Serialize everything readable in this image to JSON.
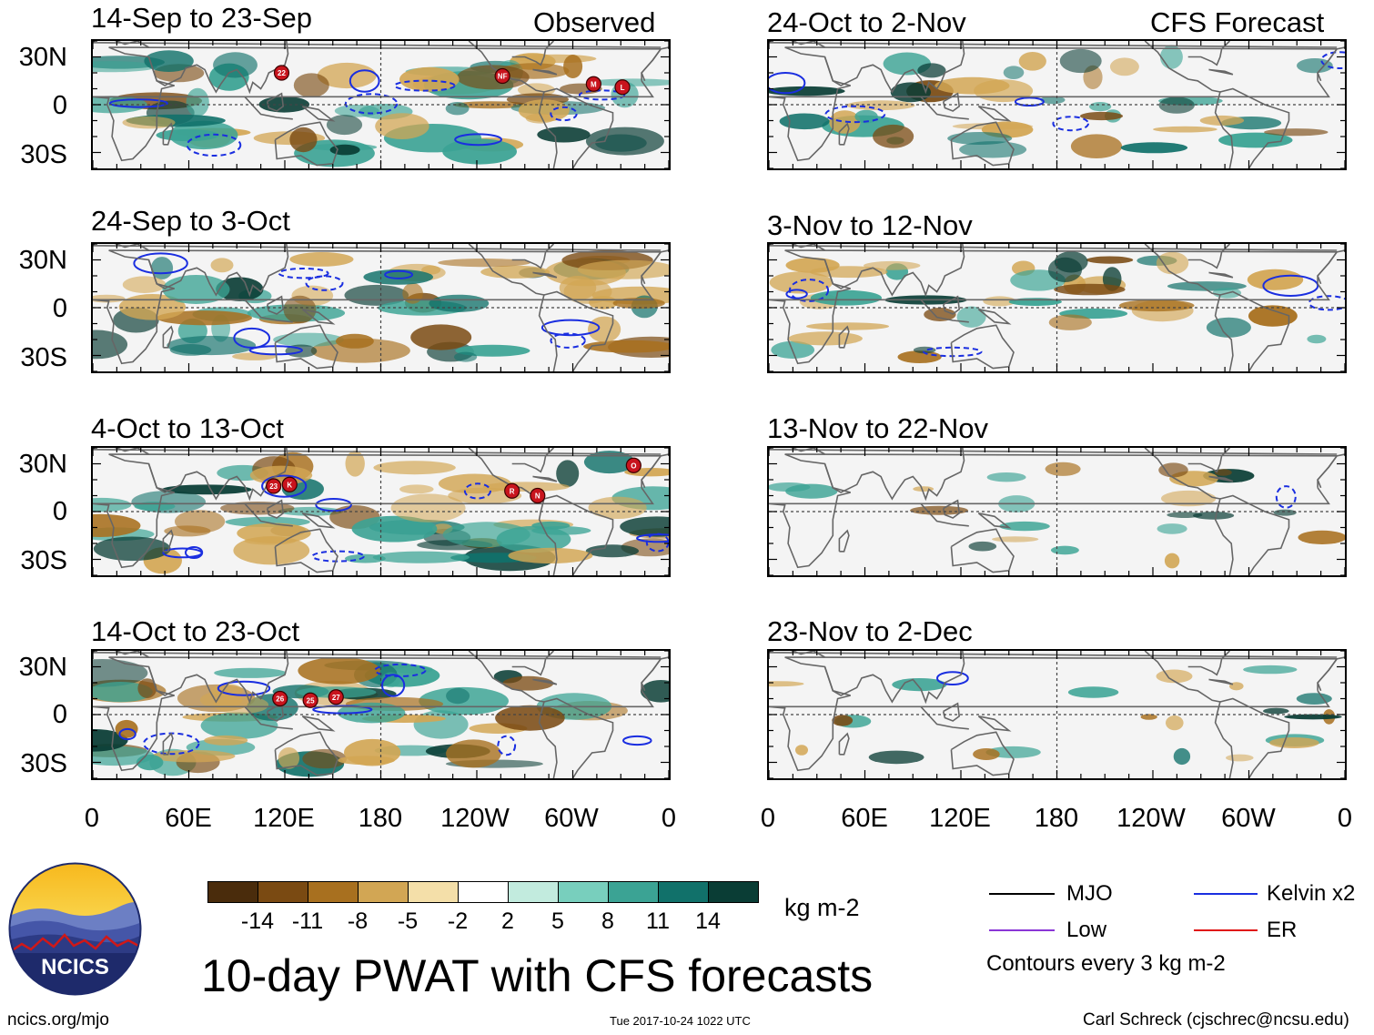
{
  "figure": {
    "title": "10-day PWAT with CFS forecasts",
    "observed_label": "Observed",
    "forecast_label": "CFS Forecast",
    "units": "kg m-2",
    "contour_note": "Contours every 3 kg m-2",
    "site_url": "ncics.org/mjo",
    "timestamp": "Tue 2017-10-24 1022 UTC",
    "author": "Carl Schreck (cjschrec@ncsu.edu)",
    "logo_text": "NCICS"
  },
  "axes": {
    "lat_ticks": [
      "30N",
      "0",
      "30S"
    ],
    "lon_ticks": [
      "0",
      "60E",
      "120E",
      "180",
      "120W",
      "60W",
      "0"
    ]
  },
  "panels": {
    "observed": [
      {
        "period": "14-Sep to 23-Sep",
        "storms": [
          "22",
          "NF",
          "M",
          "L"
        ]
      },
      {
        "period": "24-Sep to 3-Oct",
        "storms": []
      },
      {
        "period": "4-Oct to 13-Oct",
        "storms": [
          "23",
          "K",
          "R",
          "N",
          "O"
        ]
      },
      {
        "period": "14-Oct to 23-Oct",
        "storms": [
          "26",
          "25",
          "27"
        ]
      }
    ],
    "forecast": [
      {
        "period": "24-Oct to 2-Nov"
      },
      {
        "period": "3-Nov to 12-Nov"
      },
      {
        "period": "13-Nov to 22-Nov"
      },
      {
        "period": "23-Nov to 2-Dec"
      }
    ]
  },
  "colorbar": {
    "tick_labels": [
      "-14",
      "-11",
      "-8",
      "-5",
      "-2",
      "2",
      "5",
      "8",
      "11",
      "14"
    ],
    "colors": [
      "#4a2c0c",
      "#7a4a12",
      "#a8701f",
      "#d2a654",
      "#f4dfa9",
      "#ffffff",
      "#c2ebde",
      "#78cfbd",
      "#3ba394",
      "#11716a",
      "#0a3d35"
    ]
  },
  "legend": {
    "items": [
      {
        "label": "MJO",
        "color": "#000000"
      },
      {
        "label": "Kelvin x2",
        "color": "#1a2ee0"
      },
      {
        "label": "Low",
        "color": "#8a35d6"
      },
      {
        "label": "ER",
        "color": "#e01515"
      }
    ]
  }
}
